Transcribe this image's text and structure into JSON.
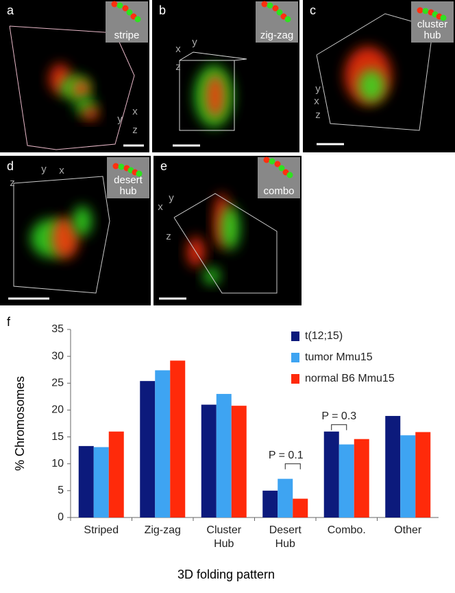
{
  "panels": [
    {
      "label": "a",
      "inset": [
        "stripe"
      ],
      "axes": [
        "x",
        "y",
        "z"
      ]
    },
    {
      "label": "b",
      "inset": [
        "zig-zag"
      ],
      "axes": [
        "x",
        "y",
        "z"
      ]
    },
    {
      "label": "c",
      "inset": [
        "cluster",
        "hub"
      ],
      "axes": [
        "y",
        "x",
        "z"
      ]
    },
    {
      "label": "d",
      "inset": [
        "desert",
        "hub"
      ],
      "axes": [
        "y",
        "x",
        "z"
      ]
    },
    {
      "label": "e",
      "inset": [
        "combo"
      ],
      "axes": [
        "x",
        "y",
        "z"
      ]
    }
  ],
  "chart_data": {
    "type": "bar",
    "panel_label": "f",
    "y_label": "% Chromosomes",
    "x_label": "3D folding pattern",
    "categories": [
      "Striped",
      "Zig-zag",
      "Cluster Hub",
      "Desert Hub",
      "Combo.",
      "Other"
    ],
    "series": [
      {
        "name": "t(12;15)",
        "color": "#0c1a7c",
        "values": [
          13.3,
          25.4,
          21,
          5,
          16,
          18.9
        ]
      },
      {
        "name": "tumor Mmu15",
        "color": "#3ea4f2",
        "values": [
          13.1,
          27.4,
          23,
          7.2,
          13.6,
          15.3
        ]
      },
      {
        "name": "normal B6 Mmu15",
        "color": "#ff2a0a",
        "values": [
          16,
          29.2,
          20.8,
          3.5,
          14.6,
          15.9
        ]
      }
    ],
    "annotations": [
      "P = 0.1",
      "P = 0.3"
    ],
    "ylim": [
      0,
      35
    ],
    "yticks": [
      0,
      5,
      10,
      15,
      20,
      25,
      30,
      35
    ],
    "grid": false
  }
}
